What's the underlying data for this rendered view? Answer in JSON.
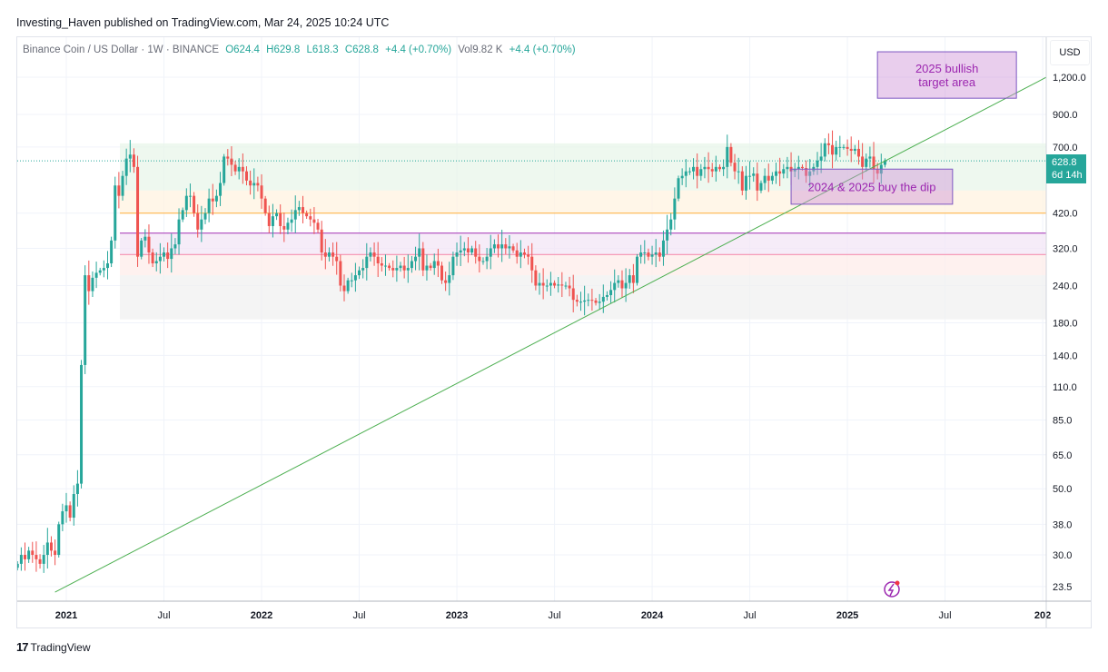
{
  "publisher_line": "Investing_Haven published on TradingView.com, Mar 24, 2025 10:24 UTC",
  "legend": {
    "symbol": "Binance Coin / US Dollar · 1W · BINANCE",
    "open": "O624.4",
    "high": "H629.8",
    "low": "L618.3",
    "close": "C628.8",
    "change": "+4.4 (+0.70%)",
    "volume": "Vol9.82 K",
    "vol_change": "+4.4 (+0.70%)"
  },
  "currency_button": "USD",
  "price_tag": {
    "price": "628.8",
    "countdown": "6d 14h"
  },
  "branding": "TradingView",
  "colors": {
    "up": "#26a69a",
    "down": "#ef5350",
    "trendline": "#4caf50",
    "annotation_text": "#9c27b0",
    "annotation_border": "#7e57c2"
  },
  "chart_data": {
    "type": "candlestick",
    "interval": "1W",
    "scale": "log",
    "first_date": "2020-10-05",
    "ylim": [
      21,
      1300
    ],
    "y_ticks": [
      "1,200.0",
      "900.0",
      "700.0",
      "420.0",
      "320.0",
      "240.0",
      "180.0",
      "140.0",
      "110.0",
      "85.0",
      "65.0",
      "50.0",
      "38.0",
      "30.0",
      "23.5"
    ],
    "x_ticks": [
      "2021",
      "Jul",
      "2022",
      "Jul",
      "2023",
      "Jul",
      "2024",
      "Jul",
      "2025",
      "Jul",
      "202"
    ],
    "closes": [
      28,
      30,
      29,
      31,
      30,
      29,
      28,
      30,
      33,
      31,
      30,
      38,
      42,
      44,
      40,
      48,
      52,
      130,
      260,
      230,
      255,
      265,
      270,
      275,
      285,
      340,
      520,
      480,
      560,
      640,
      660,
      600,
      300,
      340,
      350,
      310,
      285,
      290,
      300,
      310,
      295,
      320,
      330,
      400,
      430,
      480,
      480,
      420,
      370,
      400,
      420,
      470,
      460,
      480,
      530,
      650,
      640,
      610,
      580,
      600,
      580,
      540,
      520,
      530,
      520,
      470,
      420,
      380,
      410,
      420,
      380,
      370,
      390,
      400,
      430,
      440,
      420,
      410,
      400,
      390,
      370,
      310,
      300,
      310,
      300,
      290,
      240,
      230,
      250,
      250,
      260,
      270,
      275,
      300,
      310,
      300,
      285,
      280,
      280,
      275,
      270,
      275,
      280,
      270,
      275,
      290,
      300,
      320,
      270,
      280,
      275,
      290,
      280,
      250,
      245,
      260,
      300,
      310,
      315,
      320,
      310,
      320,
      300,
      290,
      290,
      300,
      320,
      330,
      320,
      330,
      320,
      325,
      315,
      300,
      310,
      305,
      300,
      270,
      240,
      245,
      240,
      240,
      245,
      240,
      242,
      240,
      240,
      235,
      215,
      212,
      212,
      214,
      215,
      214,
      210,
      212,
      220,
      223,
      232,
      245,
      250,
      235,
      245,
      260,
      245,
      300,
      310,
      310,
      300,
      305,
      310,
      300,
      340,
      370,
      400,
      470,
      550,
      560,
      580,
      580,
      600,
      560,
      590,
      600,
      590,
      580,
      600,
      590,
      600,
      700,
      620,
      580,
      580,
      500,
      560,
      560,
      570,
      500,
      530,
      560,
      540,
      560,
      580,
      570,
      590,
      600,
      580,
      590,
      600,
      595,
      560,
      580,
      600,
      630,
      650,
      720,
      710,
      660,
      700,
      700,
      700,
      690,
      680,
      690,
      650,
      600,
      640,
      650,
      590,
      570,
      610,
      628.8
    ],
    "zones": [
      {
        "from": 500,
        "to": 720,
        "color": "#e8f5e9"
      },
      {
        "from": 420,
        "to": 500,
        "color": "#fff3e0"
      },
      {
        "from": 305,
        "to": 360,
        "color": "#f3e5f5"
      },
      {
        "from": 260,
        "to": 305,
        "color": "#fdecea"
      },
      {
        "from": 185,
        "to": 260,
        "color": "#f0f0f0"
      }
    ],
    "horizontal_lines": [
      {
        "price": 420,
        "color": "#ffb74d"
      },
      {
        "price": 360,
        "color": "#ab47bc"
      },
      {
        "price": 305,
        "color": "#f48fb1"
      }
    ],
    "trendline": {
      "from": [
        "2020-12-14",
        22.5
      ],
      "to": [
        "2026-01-05",
        1200
      ]
    },
    "annotations": [
      {
        "text": [
          "2025 bullish",
          "target area"
        ],
        "date_from": "2025-02-24",
        "date_to": "2025-11-10",
        "price_from": 1020,
        "price_to": 1460
      },
      {
        "text": [
          "2024 & 2025 buy the dip"
        ],
        "date_from": "2024-09-16",
        "date_to": "2025-07-14",
        "price_from": 450,
        "price_to": 590
      }
    ]
  }
}
